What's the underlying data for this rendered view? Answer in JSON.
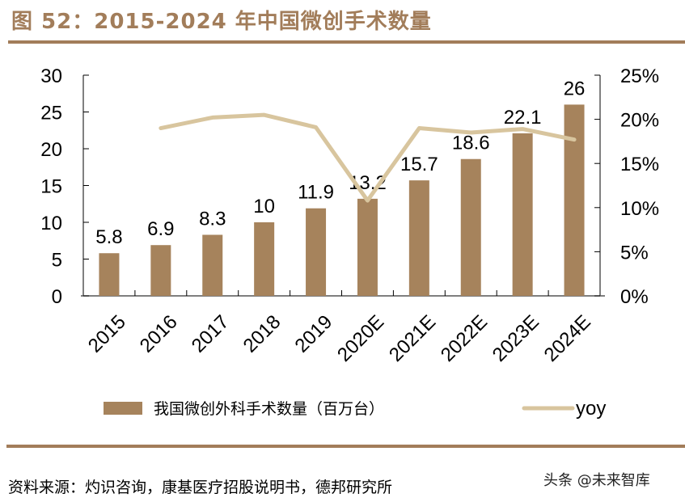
{
  "header": {
    "title": "图 52：2015-2024 年中国微创手术数量"
  },
  "footer": {
    "source": "资料来源：灼识咨询，康基医疗招股说明书，德邦研究所",
    "watermark": "头条 @未来智库"
  },
  "colors": {
    "bar": "#A6835C",
    "line": "#D8C59E",
    "accent": "#A27D5A",
    "axis": "#000000"
  },
  "chart_data": {
    "type": "bar",
    "title": "2015-2024 年中国微创手术数量",
    "categories": [
      "2015",
      "2016",
      "2017",
      "2018",
      "2019",
      "2020E",
      "2021E",
      "2022E",
      "2023E",
      "2024E"
    ],
    "series": [
      {
        "name": "我国微创外科手术数量（百万台）",
        "type": "bar",
        "axis": "left",
        "values": [
          5.8,
          6.9,
          8.3,
          10,
          11.9,
          13.2,
          15.7,
          18.6,
          22.1,
          26
        ],
        "labels": [
          "5.8",
          "6.9",
          "8.3",
          "10",
          "11.9",
          "13.2",
          "15.7",
          "18.6",
          "22.1",
          "26"
        ]
      },
      {
        "name": "yoy",
        "type": "line",
        "axis": "right",
        "values": [
          null,
          19.0,
          20.2,
          20.5,
          19.1,
          10.8,
          19.0,
          18.5,
          18.9,
          17.7
        ],
        "unit": "%"
      }
    ],
    "y_left": {
      "min": 0,
      "max": 30,
      "ticks": [
        "0",
        "5",
        "10",
        "15",
        "20",
        "25",
        "30"
      ],
      "tick_values": [
        0,
        5,
        10,
        15,
        20,
        25,
        30
      ]
    },
    "y_right": {
      "min": 0,
      "max": 25,
      "ticks": [
        "0%",
        "5%",
        "10%",
        "15%",
        "20%",
        "25%"
      ],
      "tick_values": [
        0,
        5,
        10,
        15,
        20,
        25
      ]
    },
    "xlabel": "",
    "ylabel": "",
    "grid": false,
    "legend": {
      "position": "bottom",
      "items": [
        "我国微创外科手术数量（百万台）",
        "yoy"
      ]
    }
  }
}
